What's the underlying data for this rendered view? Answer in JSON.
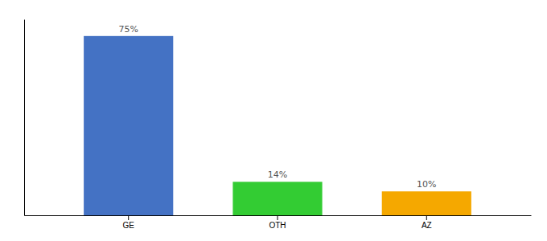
{
  "chart_data": {
    "type": "bar",
    "categories": [
      "GE",
      "OTH",
      "AZ"
    ],
    "values": [
      75,
      14,
      10
    ],
    "value_labels": [
      "75%",
      "14%",
      "10%"
    ],
    "colors": [
      "#4472c4",
      "#33cc33",
      "#f5a800"
    ],
    "ylim": [
      0,
      82
    ],
    "data_labels": true,
    "tick_labels": "x"
  }
}
